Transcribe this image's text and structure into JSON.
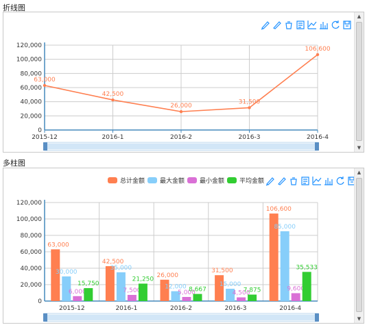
{
  "titles": {
    "line_chart": "折线图",
    "bar_chart": "多柱图"
  },
  "colors": {
    "line": "#ff7f50",
    "series": [
      "#ff7f50",
      "#87cefa",
      "#da70d6",
      "#32cd32"
    ],
    "axis": "#4488bb",
    "grid": "#cccccc",
    "toolbar": "#1e90ff"
  },
  "toolbar_icons": [
    "mark-line-icon",
    "erase-line-icon",
    "clear-icon",
    "data-view-icon",
    "line-type-icon",
    "bar-type-icon",
    "restore-icon",
    "save-image-icon"
  ],
  "chart_data": [
    {
      "type": "line",
      "categories": [
        "2015-12",
        "2016-1",
        "2016-2",
        "2016-3",
        "2016-4"
      ],
      "series": [
        {
          "values": [
            63000,
            42500,
            26000,
            31500,
            106600
          ]
        }
      ],
      "value_labels": [
        "63,000",
        "42,500",
        "26,000",
        "31,500",
        "106,600"
      ],
      "ylim": [
        0,
        120000
      ],
      "yticks": [
        "0",
        "20,000",
        "40,000",
        "60,000",
        "80,000",
        "100,000",
        "120,000"
      ],
      "grid": true,
      "legend": "none"
    },
    {
      "type": "bar",
      "categories": [
        "2015-12",
        "2016-1",
        "2016-2",
        "2016-3",
        "2016-4"
      ],
      "series": [
        {
          "name": "总计金额",
          "values": [
            63000,
            42500,
            26000,
            31500,
            106600
          ],
          "labels": [
            "63,000",
            "42,500",
            "26,000",
            "31,500",
            "106,600"
          ]
        },
        {
          "name": "最大金额",
          "values": [
            30000,
            35000,
            12000,
            15000,
            85000
          ],
          "labels": [
            "30,000",
            "35,000",
            "12,000",
            "15,000",
            "85,000"
          ]
        },
        {
          "name": "最小金额",
          "values": [
            6000,
            7500,
            5000,
            4500,
            9600
          ],
          "labels": [
            "6,000",
            "7,500",
            "5,000",
            "4,500",
            "9,600"
          ]
        },
        {
          "name": "平均金额",
          "values": [
            15750,
            21250,
            8667,
            7875,
            35533
          ],
          "labels": [
            "15,750",
            "21,250",
            "8,667",
            "7,875",
            "35,533"
          ]
        }
      ],
      "ylim": [
        0,
        120000
      ],
      "yticks": [
        "0",
        "20,000",
        "40,000",
        "60,000",
        "80,000",
        "100,000",
        "120,000"
      ],
      "grid": true,
      "legend": "top-right"
    }
  ]
}
